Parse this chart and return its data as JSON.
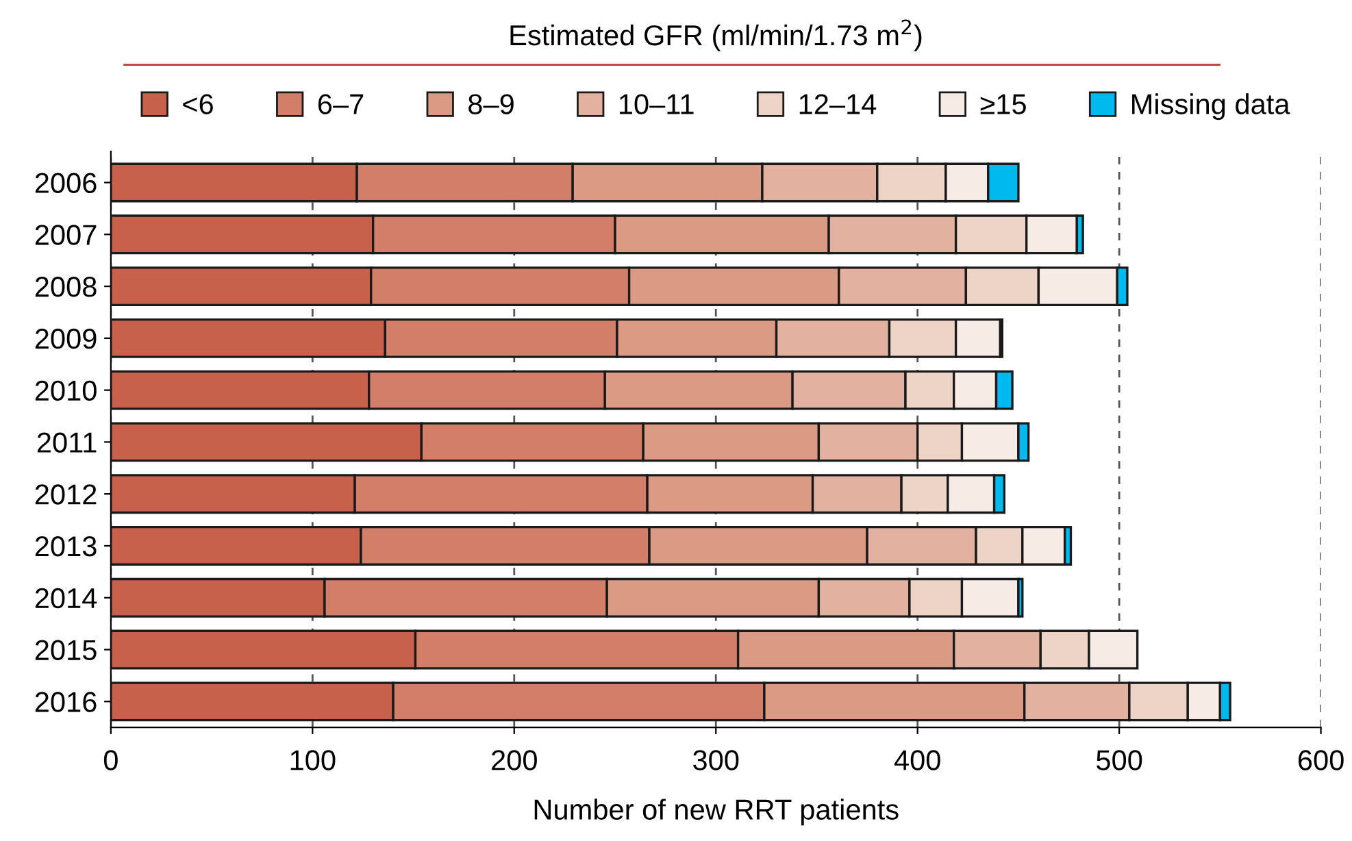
{
  "chart_data": {
    "type": "bar",
    "orientation": "horizontal",
    "stacked": true,
    "legend_title": "Estimated GFR (ml/min/1.73 m$^{2}$)",
    "xlabel": "Number of new RRT patients",
    "categories": [
      "2006",
      "2007",
      "2008",
      "2009",
      "2010",
      "2011",
      "2012",
      "2013",
      "2014",
      "2015",
      "2016"
    ],
    "series": [
      {
        "name": "<6",
        "color": "#c8614b",
        "values": [
          122,
          130,
          129,
          136,
          128,
          154,
          121,
          124,
          106,
          151,
          140
        ]
      },
      {
        "name": "6–7",
        "color": "#d27e68",
        "values": [
          107,
          120,
          128,
          115,
          117,
          110,
          145,
          143,
          140,
          160,
          184
        ]
      },
      {
        "name": "8–9",
        "color": "#db9a84",
        "values": [
          94,
          106,
          104,
          79,
          93,
          87,
          82,
          108,
          105,
          107,
          129
        ]
      },
      {
        "name": "10–11",
        "color": "#e3b19f",
        "values": [
          57,
          63,
          63,
          56,
          56,
          49,
          44,
          54,
          45,
          43,
          52
        ]
      },
      {
        "name": "12–14",
        "color": "#eed3c7",
        "values": [
          34,
          35,
          36,
          33,
          24,
          22,
          23,
          23,
          26,
          24,
          29
        ]
      },
      {
        "name": "≥15",
        "color": "#f7ebe6",
        "values": [
          21,
          25,
          39,
          22,
          21,
          28,
          23,
          21,
          28,
          24,
          16
        ]
      },
      {
        "name": "Missing data",
        "color": "#00b9ee",
        "values": [
          15,
          3,
          5,
          1,
          8,
          5,
          5,
          3,
          2,
          null,
          5
        ]
      }
    ],
    "xlim": [
      0,
      600
    ],
    "xticks": [
      0,
      100,
      200,
      300,
      400,
      500,
      600
    ],
    "grid": "x",
    "legend": "top"
  }
}
